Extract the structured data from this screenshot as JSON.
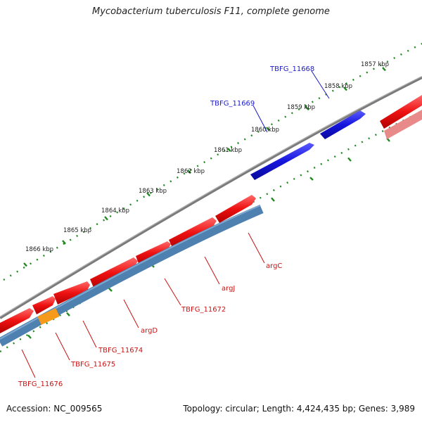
{
  "title": "Mycobacterium tuberculosis F11, complete genome",
  "footer": {
    "accession": "Accession: NC_009565",
    "stats": "Topology: circular; Length: 4,424,435 bp; Genes: 3,989"
  },
  "colors": {
    "forward_gene": "#ee1111",
    "forward_gene_light": "#e88080",
    "reverse_gene": "#1515dd",
    "operon": "#4e80b0",
    "operon_highlight": "#f59a1a",
    "backbone": "#808080",
    "tick": "#228822",
    "tick_label": "#222222",
    "forward_label": "#1b1bc8",
    "reverse_label": "#cc1111"
  },
  "scale_labels": [
    "1857 kbp",
    "1858 kbp",
    "1859 kbp",
    "1860 kbp",
    "1861 kbp",
    "1862 kbp",
    "1863 kbp",
    "1864 kbp",
    "1865 kbp",
    "1866 kbp"
  ],
  "gene_labels_top": [
    "TBFG_11668",
    "TBFG_11669"
  ],
  "gene_labels_bottom": [
    "argC",
    "argJ",
    "TBFG_11672",
    "argD",
    "TBFG_11674",
    "TBFG_11675",
    "TBFG_11676"
  ]
}
